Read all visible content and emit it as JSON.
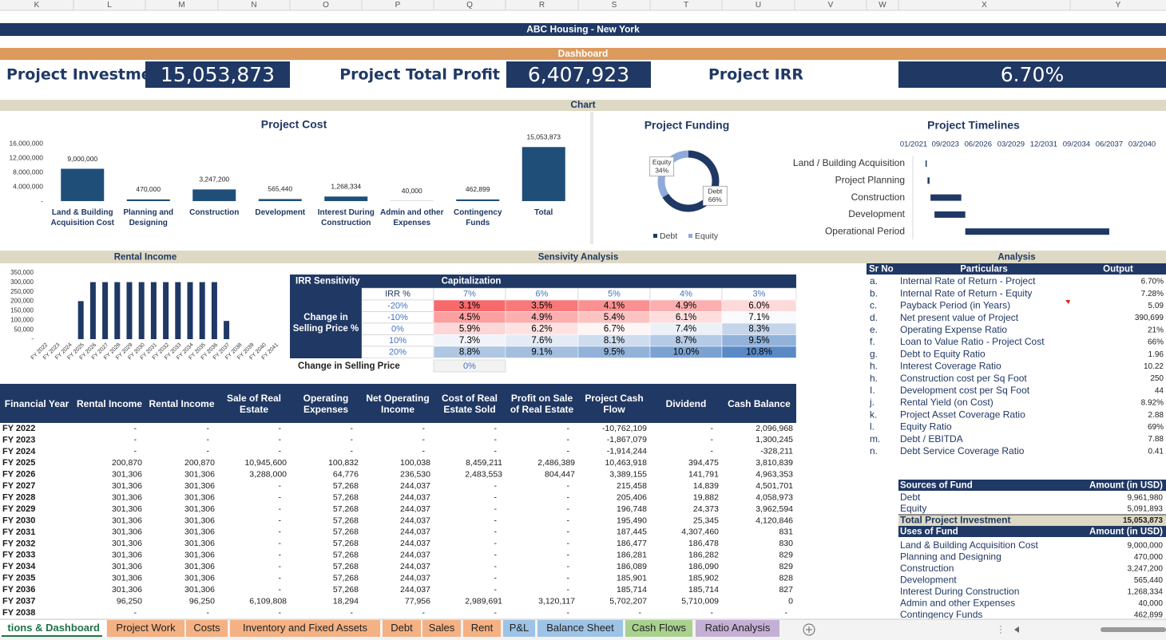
{
  "column_letters": [
    "K",
    "L",
    "M",
    "N",
    "O",
    "P",
    "Q",
    "R",
    "S",
    "T",
    "U",
    "V",
    "W",
    "X",
    "Y"
  ],
  "banner": {
    "title": "ABC Housing - New York",
    "subtitle": "Dashboard"
  },
  "kpis": [
    {
      "label": "Project Investment",
      "value": "15,053,873"
    },
    {
      "label": "Project Total Profit",
      "value": "6,407,923"
    },
    {
      "label": "Project IRR",
      "value": "6.70%"
    }
  ],
  "chart_section": "Chart",
  "project_cost": {
    "type": "bar",
    "title": "Project Cost",
    "categories": [
      "Land & Building Acquisition Cost",
      "Planning and Designing",
      "Construction",
      "Development",
      "Interest During Construction",
      "Admin and other Expenses",
      "Contingency Funds",
      "Total"
    ],
    "values": [
      9000000,
      470000,
      3247200,
      565440,
      1268334,
      40000,
      462899,
      15053873
    ],
    "value_labels": [
      "9,000,000",
      "470,000",
      "3,247,200",
      "565,440",
      "1,268,334",
      "40,000",
      "462,899",
      "15,053,873"
    ],
    "ylim": [
      0,
      16000000
    ],
    "yticks": [
      {
        "value": 16000000,
        "label": "16,000,000"
      },
      {
        "value": 12000000,
        "label": "12,000,000"
      },
      {
        "value": 8000000,
        "label": "8,000,000"
      },
      {
        "value": 4000000,
        "label": "4,000,000"
      },
      {
        "value": 0,
        "label": "-"
      }
    ],
    "color": "#1f4e79"
  },
  "project_funding": {
    "type": "pie",
    "title": "Project Funding",
    "categories": [
      "Debt",
      "Equity"
    ],
    "values": [
      66,
      34
    ],
    "value_labels": [
      "66%",
      "34%"
    ],
    "colors": [
      "#1f3864",
      "#8eaadb"
    ]
  },
  "project_timelines": {
    "type": "gantt",
    "title": "Project Timelines",
    "categories": [
      "Land / Building Acquisition",
      "Project Planning",
      "Construction",
      "Development",
      "Operational Period"
    ],
    "starts": [
      "01/2022",
      "03/2022",
      "06/2022",
      "10/2022",
      "05/2025"
    ],
    "ends": [
      "02/2022",
      "05/2022",
      "01/2025",
      "05/2025",
      "06/2037"
    ],
    "xlim": [
      "01/2021",
      "03/2040"
    ],
    "xticks": [
      "01/2021",
      "09/2023",
      "06/2026",
      "03/2029",
      "12/2031",
      "09/2034",
      "06/2037",
      "03/2040"
    ],
    "color": "#1f3864"
  },
  "section_headers": {
    "rental_income": "Rental Income",
    "sensitivity": "Sensivity Analysis",
    "analysis": "Analysis"
  },
  "rental_income": {
    "type": "bar",
    "categories": [
      "FY 2022",
      "FY 2023",
      "FY 2024",
      "FY 2025",
      "FY 2026",
      "FY 2027",
      "FY 2028",
      "FY 2029",
      "FY 2030",
      "FY 2031",
      "FY 2032",
      "FY 2033",
      "FY 2034",
      "FY 2035",
      "FY 2036",
      "FY 2037",
      "FY 2038",
      "FY 2039",
      "FY 2040",
      "FY 2041"
    ],
    "values": [
      0,
      0,
      0,
      200870,
      301306,
      301306,
      301306,
      301306,
      301306,
      301306,
      301306,
      301306,
      301306,
      301306,
      301306,
      96250,
      0,
      0,
      0,
      0
    ],
    "ylim": [
      0,
      350000
    ],
    "yticks": [
      {
        "value": 350000,
        "label": "350,000"
      },
      {
        "value": 300000,
        "label": "300,000"
      },
      {
        "value": 250000,
        "label": "250,000"
      },
      {
        "value": 200000,
        "label": "200,000"
      },
      {
        "value": 150000,
        "label": "150,000"
      },
      {
        "value": 100000,
        "label": "100,000"
      },
      {
        "value": 50000,
        "label": "50,000"
      },
      {
        "value": 0,
        "label": "-"
      }
    ],
    "color": "#1f3864"
  },
  "sensitivity": {
    "title": "IRR Sensitivity",
    "column_group": "Capitalization",
    "corner": "IRR %",
    "row_group": "Change in Selling Price %",
    "columns": [
      "7%",
      "6%",
      "5%",
      "4%",
      "3%"
    ],
    "rows": [
      "-20%",
      "-10%",
      "0%",
      "10%",
      "20%"
    ],
    "cells": [
      [
        "3.1%",
        "3.5%",
        "4.1%",
        "4.9%",
        "6.0%"
      ],
      [
        "4.5%",
        "4.9%",
        "5.4%",
        "6.1%",
        "7.1%"
      ],
      [
        "5.9%",
        "6.2%",
        "6.7%",
        "7.4%",
        "8.3%"
      ],
      [
        "7.3%",
        "7.6%",
        "8.1%",
        "8.7%",
        "9.5%"
      ],
      [
        "8.8%",
        "9.1%",
        "9.5%",
        "10.0%",
        "10.8%"
      ]
    ],
    "input_label": "Change in Selling Price",
    "input_value": "0%"
  },
  "cash_flow_table": {
    "headers": [
      "Financial Year",
      "Rental Income",
      "Rental Income",
      "Sale of Real Estate",
      "Operating Expenses",
      "Net Operating Income",
      "Cost of Real Estate Sold",
      "Profit on Sale of Real Estate",
      "Project Cash Flow",
      "Dividend",
      "Cash Balance"
    ],
    "rows": [
      [
        "FY 2022",
        "-",
        "-",
        "-",
        "-",
        "-",
        "-",
        "-",
        "-10,762,109",
        "-",
        "2,096,968"
      ],
      [
        "FY 2023",
        "-",
        "-",
        "-",
        "-",
        "-",
        "-",
        "-",
        "-1,867,079",
        "-",
        "1,300,245"
      ],
      [
        "FY 2024",
        "-",
        "-",
        "-",
        "-",
        "-",
        "-",
        "-",
        "-1,914,244",
        "-",
        "-328,211"
      ],
      [
        "FY 2025",
        "200,870",
        "200,870",
        "10,945,600",
        "100,832",
        "100,038",
        "8,459,211",
        "2,486,389",
        "10,463,918",
        "394,475",
        "3,810,839"
      ],
      [
        "FY 2026",
        "301,306",
        "301,306",
        "3,288,000",
        "64,776",
        "236,530",
        "2,483,553",
        "804,447",
        "3,389,155",
        "141,791",
        "4,963,353"
      ],
      [
        "FY 2027",
        "301,306",
        "301,306",
        "-",
        "57,268",
        "244,037",
        "-",
        "-",
        "215,458",
        "14,839",
        "4,501,701"
      ],
      [
        "FY 2028",
        "301,306",
        "301,306",
        "-",
        "57,268",
        "244,037",
        "-",
        "-",
        "205,406",
        "19,882",
        "4,058,973"
      ],
      [
        "FY 2029",
        "301,306",
        "301,306",
        "-",
        "57,268",
        "244,037",
        "-",
        "-",
        "196,748",
        "24,373",
        "3,962,594"
      ],
      [
        "FY 2030",
        "301,306",
        "301,306",
        "-",
        "57,268",
        "244,037",
        "-",
        "-",
        "195,490",
        "25,345",
        "4,120,846"
      ],
      [
        "FY 2031",
        "301,306",
        "301,306",
        "-",
        "57,268",
        "244,037",
        "-",
        "-",
        "187,445",
        "4,307,460",
        "831"
      ],
      [
        "FY 2032",
        "301,306",
        "301,306",
        "-",
        "57,268",
        "244,037",
        "-",
        "-",
        "186,477",
        "186,478",
        "830"
      ],
      [
        "FY 2033",
        "301,306",
        "301,306",
        "-",
        "57,268",
        "244,037",
        "-",
        "-",
        "186,281",
        "186,282",
        "829"
      ],
      [
        "FY 2034",
        "301,306",
        "301,306",
        "-",
        "57,268",
        "244,037",
        "-",
        "-",
        "186,089",
        "186,090",
        "829"
      ],
      [
        "FY 2035",
        "301,306",
        "301,306",
        "-",
        "57,268",
        "244,037",
        "-",
        "-",
        "185,901",
        "185,902",
        "828"
      ],
      [
        "FY 2036",
        "301,306",
        "301,306",
        "-",
        "57,268",
        "244,037",
        "-",
        "-",
        "185,714",
        "185,714",
        "827"
      ],
      [
        "FY 2037",
        "96,250",
        "96,250",
        "6,109,808",
        "18,294",
        "77,956",
        "2,989,691",
        "3,120,117",
        "5,702,207",
        "5,710,009",
        "0"
      ],
      [
        "FY 2038",
        "-",
        "-",
        "-",
        "-",
        "-",
        "-",
        "-",
        "-",
        "-",
        "-"
      ]
    ]
  },
  "analysis": {
    "headers": [
      "Sr No",
      "Particulars",
      "Output"
    ],
    "rows": [
      [
        "a.",
        "Internal Rate of Return - Project",
        "6.70%"
      ],
      [
        "b.",
        "Internal Rate of Return - Equity",
        "7.28%"
      ],
      [
        "c.",
        "Payback Period (in Years)",
        "5.09"
      ],
      [
        "d.",
        "Net present value of Project",
        "390,699"
      ],
      [
        "e.",
        "Operating Expense Ratio",
        "21%"
      ],
      [
        "f.",
        "Loan to Value Ratio - Project Cost",
        "66%"
      ],
      [
        "g.",
        "Debt to Equity Ratio",
        "1.96"
      ],
      [
        "h.",
        "Interest Coverage Ratio",
        "10.22"
      ],
      [
        "h.",
        "Construction cost per Sq Foot",
        "250"
      ],
      [
        "I.",
        "Development cost per Sq Foot",
        "44"
      ],
      [
        "j.",
        "Rental Yield (on Cost)",
        "8.92%"
      ],
      [
        "k.",
        "Project Asset Coverage Ratio",
        "2.88"
      ],
      [
        "l.",
        "Equity Ratio",
        "69%"
      ],
      [
        "m.",
        "Debt / EBITDA",
        "7.88"
      ],
      [
        "n.",
        "Debt Service Coverage Ratio",
        "0.41"
      ]
    ]
  },
  "funds": {
    "sources_header": [
      "Sources of Fund",
      "Amount (in USD)"
    ],
    "sources": [
      [
        "Debt",
        "9,961,980"
      ],
      [
        "Equity",
        "5,091,893"
      ]
    ],
    "total": [
      "Total Project Investment",
      "15,053,873"
    ],
    "uses_header": [
      "Uses of Fund",
      "Amount (in USD)"
    ],
    "uses": [
      [
        "Land & Building Acquisition Cost",
        "9,000,000"
      ],
      [
        "Planning and Designing",
        "470,000"
      ],
      [
        "Construction",
        "3,247,200"
      ],
      [
        "Development",
        "565,440"
      ],
      [
        "Interest During Construction",
        "1,268,334"
      ],
      [
        "Admin and other Expenses",
        "40,000"
      ],
      [
        "Contingency Funds",
        "462,899"
      ]
    ]
  },
  "sheet_tabs": [
    "tions & Dashboard",
    "Project Work",
    "Costs",
    "Inventory and Fixed Assets",
    "Debt",
    "Sales",
    "Rent",
    "P&L",
    "Balance Sheet",
    "Cash Flows",
    "Ratio Analysis"
  ]
}
